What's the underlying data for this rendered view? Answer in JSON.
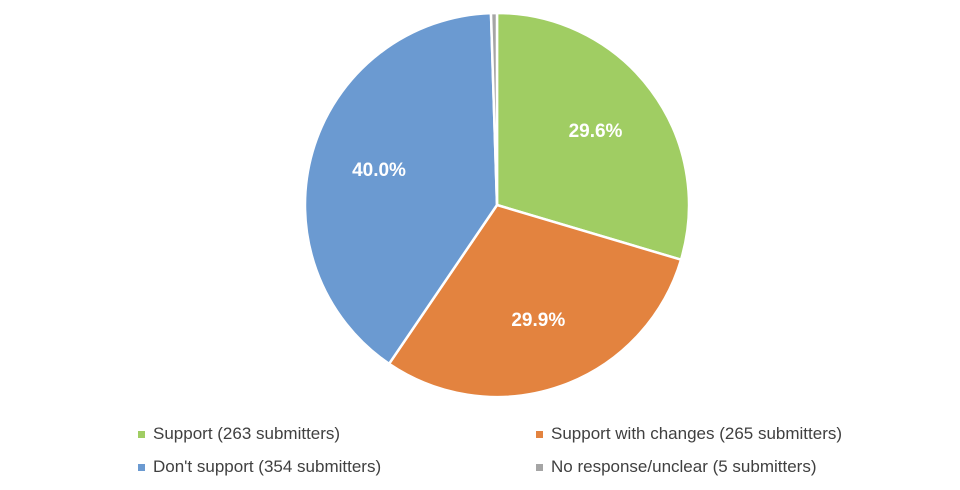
{
  "chart_data": {
    "type": "pie",
    "title": "",
    "slices": [
      {
        "label": "Support (263 submitters)",
        "value": 29.6,
        "display": "29.6%",
        "color": "#a0cd63"
      },
      {
        "label": "Support with changes (265 submitters)",
        "value": 29.9,
        "display": "29.9%",
        "color": "#e3833f"
      },
      {
        "label": "Don't support (354 submitters)",
        "value": 40.0,
        "display": "40.0%",
        "color": "#6b9ad1"
      },
      {
        "label": "No response/unclear (5 submitters)",
        "value": 0.5,
        "display": "",
        "color": "#a5a5a5"
      }
    ],
    "start_angle_deg": 0,
    "direction": "clockwise",
    "data_labels_color": "#ffffff",
    "legend_placement": "bottom"
  }
}
